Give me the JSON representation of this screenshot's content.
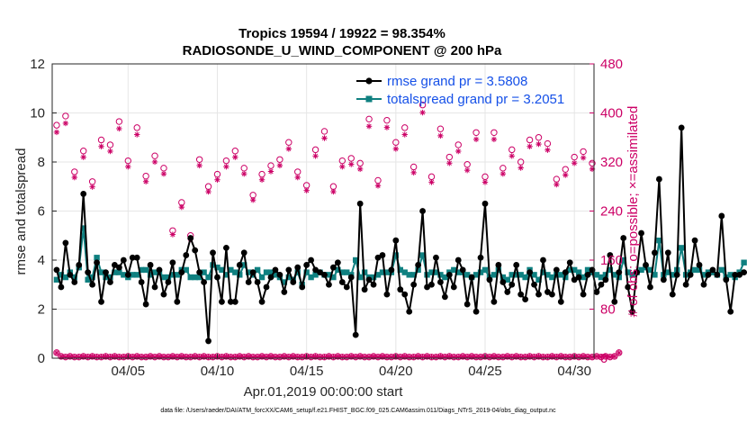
{
  "chart_data": {
    "type": "line",
    "title_line1": "Tropics 19594 / 19922 = 98.354%",
    "title_line2": "RADIOSONDE_U_WIND_COMPONENT @ 200 hPa",
    "xlabel": "Apr.01,2019 00:00:00 start",
    "ylabel_left": "rmse and totalspread",
    "ylabel_right": "# of obs: o=possible; ×=assimilated",
    "footnote": "data file: /Users/raeder/DAI/ATM_forcXX/CAM6_setup/f.e21.FHIST_BGC.f09_025.CAM6assim.011/Diags_NTrS_2019-04/obs_diag_output.nc",
    "ylim_left": [
      0,
      12
    ],
    "yticks_left": [
      "0",
      "2",
      "4",
      "6",
      "8",
      "10",
      "12"
    ],
    "ylim_right": [
      0,
      480
    ],
    "yticks_right": [
      "0",
      "80",
      "160",
      "240",
      "320",
      "400",
      "480"
    ],
    "xlim_days": [
      0.75,
      31.1
    ],
    "xticks": [
      {
        "day": 5,
        "label": "04/05"
      },
      {
        "day": 10,
        "label": "04/10"
      },
      {
        "day": 15,
        "label": "04/15"
      },
      {
        "day": 20,
        "label": "04/20"
      },
      {
        "day": 25,
        "label": "04/25"
      },
      {
        "day": 30,
        "label": "04/30"
      }
    ],
    "colors": {
      "rmse": "#000000",
      "spread": "#0f8080",
      "obs": "#cc0066",
      "legend_text": "#1550e8"
    },
    "series": [
      {
        "name": "rmse",
        "legend": "rmse grand pr = 3.5808",
        "start_day": 1.0,
        "step_days": 0.25,
        "values": [
          3.6,
          2.9,
          4.7,
          3.4,
          3.1,
          3.8,
          6.7,
          3.5,
          3.0,
          3.9,
          2.3,
          3.5,
          3.1,
          3.8,
          3.7,
          4.0,
          3.4,
          4.1,
          4.1,
          3.1,
          2.2,
          3.8,
          2.9,
          3.6,
          2.6,
          3.1,
          3.9,
          2.3,
          3.5,
          4.2,
          4.9,
          4.4,
          3.5,
          3.1,
          0.7,
          4.3,
          3.3,
          2.3,
          4.5,
          2.3,
          2.3,
          3.8,
          4.3,
          3.1,
          3.5,
          3.1,
          2.3,
          2.9,
          3.3,
          3.6,
          3.4,
          2.7,
          3.6,
          3.1,
          3.7,
          2.9,
          3.8,
          4.0,
          3.6,
          3.5,
          3.4,
          3.0,
          3.7,
          3.9,
          3.1,
          2.9,
          3.3,
          0.95,
          6.3,
          2.8,
          3.2,
          3.0,
          4.1,
          4.2,
          2.6,
          3.6,
          4.8,
          2.8,
          2.6,
          1.9,
          3.0,
          3.8,
          6.0,
          2.9,
          3.0,
          4.1,
          3.1,
          2.5,
          3.4,
          2.9,
          4.0,
          3.6,
          2.2,
          3.3,
          1.9,
          4.1,
          6.3,
          3.2,
          2.3,
          3.8,
          3.1,
          2.7,
          3.0,
          3.8,
          2.6,
          2.4,
          3.5,
          3.0,
          2.6,
          4.0,
          2.7,
          2.6,
          3.6,
          2.3,
          3.5,
          3.9,
          3.2,
          3.3,
          2.6,
          3.4,
          3.6,
          2.7,
          3.0,
          3.2,
          4.2,
          2.3,
          3.5,
          4.9,
          2.9,
          1.9,
          3.5,
          5.1,
          3.8,
          2.9,
          4.3,
          7.3,
          3.2,
          4.3,
          2.6,
          3.4,
          9.4,
          3.0,
          3.4,
          4.8,
          3.8,
          3.0,
          3.4,
          3.6,
          3.4,
          5.8,
          3.2,
          1.9,
          3.4,
          3.4,
          3.5
        ]
      },
      {
        "name": "totalspread",
        "legend": "totalspread grand pr = 3.2051",
        "start_day": 1.0,
        "step_days": 0.25,
        "values": [
          3.2,
          3.4,
          3.3,
          3.5,
          3.3,
          3.7,
          5.3,
          3.2,
          3.3,
          4.1,
          3.5,
          3.3,
          3.3,
          3.5,
          3.5,
          3.4,
          3.3,
          3.4,
          3.4,
          3.6,
          3.6,
          3.4,
          3.5,
          3.5,
          3.3,
          3.3,
          3.4,
          3.4,
          3.6,
          3.6,
          3.3,
          3.3,
          3.3,
          3.5,
          3.3,
          3.8,
          3.7,
          3.6,
          3.4,
          3.6,
          3.5,
          3.4,
          3.8,
          3.5,
          3.4,
          3.6,
          3.3,
          3.5,
          3.5,
          3.4,
          3.3,
          3.1,
          3.3,
          3.2,
          3.5,
          3.0,
          3.5,
          3.3,
          3.4,
          3.5,
          3.4,
          3.4,
          3.3,
          3.6,
          3.5,
          3.5,
          3.4,
          4.0,
          3.3,
          3.5,
          3.3,
          3.3,
          3.4,
          3.5,
          3.5,
          3.5,
          4.2,
          3.6,
          3.5,
          3.4,
          3.4,
          3.6,
          4.2,
          3.4,
          3.5,
          3.5,
          3.4,
          3.3,
          3.5,
          3.6,
          3.5,
          3.5,
          3.4,
          3.3,
          3.4,
          3.5,
          3.6,
          3.3,
          3.4,
          3.6,
          3.3,
          3.2,
          3.4,
          3.4,
          3.4,
          3.3,
          3.6,
          3.4,
          3.2,
          3.5,
          3.4,
          3.3,
          3.4,
          3.4,
          3.3,
          3.6,
          3.6,
          3.5,
          3.3,
          3.6,
          3.5,
          3.4,
          3.3,
          3.4,
          3.6,
          3.4,
          3.3,
          4.0,
          3.5,
          3.4,
          3.5,
          3.6,
          3.7,
          3.6,
          3.4,
          4.8,
          3.4,
          3.5,
          3.4,
          3.6,
          4.5,
          3.4,
          3.5,
          3.6,
          3.6,
          3.4,
          3.5,
          3.5,
          3.4,
          3.6,
          3.3,
          3.4,
          3.3,
          3.5,
          3.9
        ]
      },
      {
        "name": "obs possible (daily 00Z)",
        "start_day": 1.0,
        "step_days": 1,
        "values": [
          380,
          304,
          288,
          348,
          322,
          297,
          310,
          254,
          324,
          300,
          338,
          266,
          314,
          352,
          282,
          370,
          322,
          318,
          290,
          352,
          312,
          296,
          328,
          316,
          296,
          310,
          320,
          360,
          292,
          328,
          318
        ]
      },
      {
        "name": "obs possible (daily 12Z)",
        "start_day": 1.5,
        "step_days": 1,
        "values": [
          395,
          338,
          356,
          386,
          376,
          330,
          208,
          200,
          280,
          322,
          310,
          300,
          324,
          304,
          340,
          280,
          326,
          390,
          388,
          376,
          413,
          374,
          348,
          368,
          368,
          340,
          356,
          350,
          308,
          337
        ]
      },
      {
        "name": "obs possible (low)",
        "start_day": 1.0,
        "step_days": 0.25,
        "values": [
          9,
          3,
          2,
          3,
          2,
          2,
          3,
          2,
          3,
          2,
          2,
          3,
          2,
          3,
          2,
          2,
          3,
          2,
          3,
          2,
          2,
          3,
          2,
          3,
          2,
          2,
          3,
          2,
          3,
          2,
          2,
          3,
          2,
          3,
          2,
          2,
          3,
          2,
          3,
          2,
          2,
          3,
          2,
          3,
          2,
          2,
          3,
          2,
          3,
          2,
          2,
          3,
          2,
          3,
          2,
          2,
          3,
          2,
          3,
          2,
          2,
          3,
          2,
          3,
          2,
          2,
          3,
          2,
          3,
          2,
          2,
          3,
          2,
          3,
          2,
          2,
          3,
          2,
          3,
          2,
          2,
          3,
          2,
          3,
          2,
          2,
          3,
          2,
          3,
          2,
          2,
          3,
          2,
          3,
          2,
          2,
          3,
          2,
          3,
          2,
          2,
          3,
          2,
          3,
          2,
          2,
          3,
          2,
          3,
          2,
          2,
          3,
          2,
          3,
          2,
          2,
          3,
          2,
          3,
          2,
          2,
          3,
          2,
          3,
          2,
          3,
          9
        ]
      }
    ]
  }
}
